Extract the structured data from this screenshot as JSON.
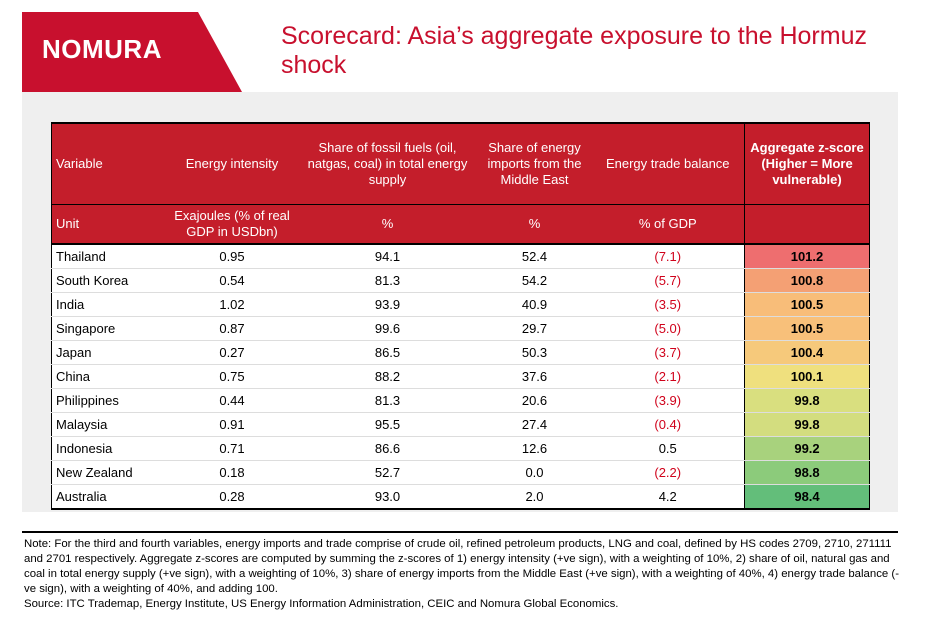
{
  "logo": {
    "text": "NOMURA",
    "band_color": "#c8102e"
  },
  "title": "Scorecard: Asia’s aggregate exposure to the Hormuz shock",
  "colors": {
    "header_bg": "#c41e2b",
    "negative": "#d0021b"
  },
  "table": {
    "headers": [
      "Variable",
      "Energy intensity",
      "Share of fossil fuels (oil, natgas, coal) in total energy supply",
      "Share of energy imports from the Middle East",
      "Energy trade balance",
      "Aggregate z-score (Higher = More vulnerable)"
    ],
    "units": [
      "Unit",
      "Exajoules (% of real GDP in USDbn)",
      "%",
      "%",
      "% of GDP",
      ""
    ],
    "rows": [
      {
        "country": "Thailand",
        "intensity": "0.95",
        "fossil": "94.1",
        "mideast": "52.4",
        "balance": "(7.1)",
        "negative": true,
        "z": "101.2",
        "z_color": "#ee6e6f"
      },
      {
        "country": "South Korea",
        "intensity": "0.54",
        "fossil": "81.3",
        "mideast": "54.2",
        "balance": "(5.7)",
        "negative": true,
        "z": "100.8",
        "z_color": "#f4a074"
      },
      {
        "country": "India",
        "intensity": "1.02",
        "fossil": "93.9",
        "mideast": "40.9",
        "balance": "(3.5)",
        "negative": true,
        "z": "100.5",
        "z_color": "#f8bd79"
      },
      {
        "country": "Singapore",
        "intensity": "0.87",
        "fossil": "99.6",
        "mideast": "29.7",
        "balance": "(5.0)",
        "negative": true,
        "z": "100.5",
        "z_color": "#f8c07a"
      },
      {
        "country": "Japan",
        "intensity": "0.27",
        "fossil": "86.5",
        "mideast": "50.3",
        "balance": "(3.7)",
        "negative": true,
        "z": "100.4",
        "z_color": "#f6c97b"
      },
      {
        "country": "China",
        "intensity": "0.75",
        "fossil": "88.2",
        "mideast": "37.6",
        "balance": "(2.1)",
        "negative": true,
        "z": "100.1",
        "z_color": "#efe07e"
      },
      {
        "country": "Philippines",
        "intensity": "0.44",
        "fossil": "81.3",
        "mideast": "20.6",
        "balance": "(3.9)",
        "negative": true,
        "z": "99.8",
        "z_color": "#d9df7f"
      },
      {
        "country": "Malaysia",
        "intensity": "0.91",
        "fossil": "95.5",
        "mideast": "27.4",
        "balance": "(0.4)",
        "negative": true,
        "z": "99.8",
        "z_color": "#d3dd7f"
      },
      {
        "country": "Indonesia",
        "intensity": "0.71",
        "fossil": "86.6",
        "mideast": "12.6",
        "balance": "0.5",
        "negative": false,
        "z": "99.2",
        "z_color": "#a8d27d"
      },
      {
        "country": "New Zealand",
        "intensity": "0.18",
        "fossil": "52.7",
        "mideast": "0.0",
        "balance": "(2.2)",
        "negative": true,
        "z": "98.8",
        "z_color": "#8ccb7b"
      },
      {
        "country": "Australia",
        "intensity": "0.28",
        "fossil": "93.0",
        "mideast": "2.0",
        "balance": "4.2",
        "negative": false,
        "z": "98.4",
        "z_color": "#63be7a"
      }
    ]
  },
  "note": "Note: For the third and fourth variables, energy imports and trade comprise of crude oil, refined petroleum products, LNG and coal, defined by HS codes 2709, 2710, 271111 and 2701 respectively. Aggregate z-scores are computed by summing the z-scores of 1) energy intensity (+ve sign), with a weighting of 10%, 2) share of oil, natural gas and coal in total energy supply (+ve sign), with a weighting of 10%, 3) share of energy imports from the Middle East (+ve sign), with a weighting of 40%, 4) energy trade balance (-ve sign), with a weighting of 40%, and adding 100.",
  "source": "Source: ITC Trademap, Energy Institute, US Energy Information Administration, CEIC and Nomura Global Economics."
}
